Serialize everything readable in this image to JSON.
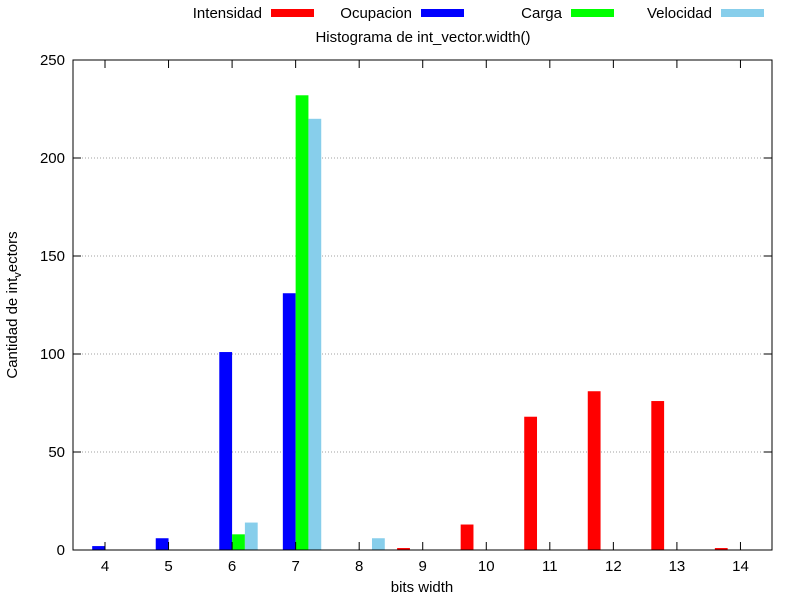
{
  "chart_data": {
    "type": "bar",
    "title": "Histograma de int_vector.width()",
    "xlabel": "bits width",
    "ylabel": "Cantidad de int_vectors",
    "ylabel_display": "Cantidad de int",
    "ylabel_subscript": "v",
    "ylabel_tail": "ectors",
    "categories": [
      "4",
      "5",
      "6",
      "7",
      "8",
      "9",
      "10",
      "11",
      "12",
      "13",
      "14"
    ],
    "ylim": [
      0,
      250
    ],
    "yticks": [
      0,
      50,
      100,
      150,
      200,
      250
    ],
    "grid": "horizontal dotted",
    "legend_position": "top",
    "series": [
      {
        "name": "Intensidad",
        "color": "#ff0000",
        "values": [
          0,
          0,
          0,
          0,
          0,
          1,
          13,
          68,
          81,
          76,
          1
        ]
      },
      {
        "name": "Ocupacion",
        "color": "#0000ff",
        "values": [
          2,
          6,
          101,
          131,
          0,
          0,
          0,
          0,
          0,
          0,
          0
        ]
      },
      {
        "name": "Carga",
        "color": "#00ff00",
        "values": [
          0,
          0,
          8,
          232,
          0,
          0,
          0,
          0,
          0,
          0,
          0
        ]
      },
      {
        "name": "Velocidad",
        "color": "#87ceeb",
        "values": [
          0,
          0,
          14,
          220,
          6,
          0,
          0,
          0,
          0,
          0,
          0
        ]
      }
    ]
  }
}
